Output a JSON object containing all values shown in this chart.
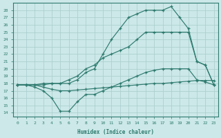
{
  "xlabel": "Humidex (Indice chaleur)",
  "xlim": [
    -0.5,
    23.5
  ],
  "ylim": [
    13.5,
    29.0
  ],
  "xticks": [
    0,
    1,
    2,
    3,
    4,
    5,
    6,
    7,
    8,
    9,
    10,
    11,
    12,
    13,
    14,
    15,
    16,
    17,
    18,
    19,
    20,
    21,
    22,
    23
  ],
  "yticks": [
    14,
    15,
    16,
    17,
    18,
    19,
    20,
    21,
    22,
    23,
    24,
    25,
    26,
    27,
    28
  ],
  "bg_color": "#cce8e8",
  "line_color": "#2d7a6e",
  "grid_color": "#a8cccc",
  "lines": [
    {
      "x": [
        0,
        1,
        2,
        3,
        4,
        5,
        6,
        7,
        8,
        9,
        10,
        11,
        12,
        13,
        14,
        15,
        16,
        17,
        18,
        19,
        20,
        21,
        22,
        23
      ],
      "y": [
        17.8,
        17.8,
        17.8,
        17.5,
        17.2,
        17.0,
        17.0,
        17.1,
        17.2,
        17.3,
        17.4,
        17.5,
        17.6,
        17.7,
        17.8,
        17.9,
        18.0,
        18.0,
        18.1,
        18.2,
        18.3,
        18.4,
        18.4,
        18.4
      ]
    },
    {
      "x": [
        0,
        1,
        2,
        3,
        4,
        5,
        6,
        7,
        8,
        9,
        10,
        11,
        12,
        13,
        14,
        15,
        16,
        17,
        18,
        19,
        20,
        21,
        22,
        23
      ],
      "y": [
        17.8,
        17.8,
        17.5,
        17.0,
        16.0,
        14.2,
        14.2,
        15.5,
        16.5,
        16.5,
        17.0,
        17.5,
        18.0,
        18.5,
        19.0,
        19.5,
        19.8,
        20.0,
        20.0,
        20.0,
        20.0,
        18.5,
        18.2,
        17.8
      ]
    },
    {
      "x": [
        0,
        1,
        2,
        3,
        4,
        5,
        6,
        7,
        8,
        9,
        10,
        11,
        12,
        13,
        14,
        15,
        16,
        17,
        18,
        19,
        20,
        21,
        22,
        23
      ],
      "y": [
        17.8,
        17.8,
        17.8,
        18.0,
        18.0,
        18.0,
        18.5,
        19.0,
        20.0,
        20.5,
        21.5,
        22.0,
        22.5,
        23.0,
        24.0,
        25.0,
        25.0,
        25.0,
        25.0,
        25.0,
        25.0,
        21.0,
        20.5,
        17.8
      ]
    },
    {
      "x": [
        0,
        1,
        2,
        3,
        4,
        5,
        6,
        7,
        8,
        9,
        10,
        11,
        12,
        13,
        14,
        15,
        16,
        17,
        18,
        19,
        20,
        21,
        22,
        23
      ],
      "y": [
        17.8,
        17.8,
        17.8,
        17.8,
        18.0,
        18.0,
        18.0,
        18.5,
        19.5,
        20.0,
        22.0,
        24.0,
        25.5,
        27.0,
        27.5,
        28.0,
        28.0,
        28.0,
        28.5,
        27.0,
        25.5,
        21.0,
        20.5,
        17.8
      ]
    }
  ]
}
